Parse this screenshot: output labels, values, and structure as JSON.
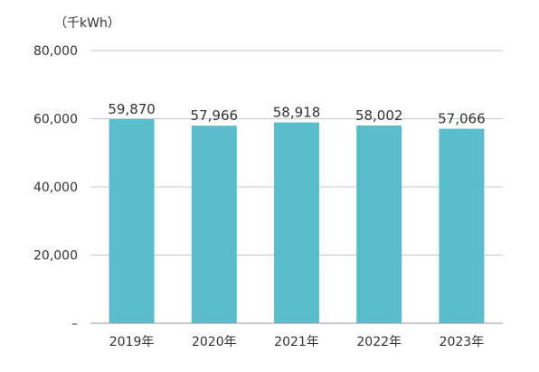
{
  "chart_data": {
    "type": "bar",
    "unit": "（千kWh）",
    "categories": [
      "2019年",
      "2020年",
      "2021年",
      "2022年",
      "2023年"
    ],
    "values": [
      59870,
      57966,
      58918,
      58002,
      57066
    ],
    "value_labels": [
      "59,870",
      "57,966",
      "58,918",
      "58,002",
      "57,066"
    ],
    "ylim": [
      0,
      80000
    ],
    "yticks": [
      0,
      20000,
      40000,
      60000,
      80000
    ],
    "ytick_labels": [
      "–",
      "20,000",
      "40,000",
      "60,000",
      "80,000"
    ],
    "grid": true,
    "bar_color": "#5bbccc",
    "grid_color": "#c8c8c8",
    "axis_color": "#999999",
    "text_color": "#333333"
  }
}
